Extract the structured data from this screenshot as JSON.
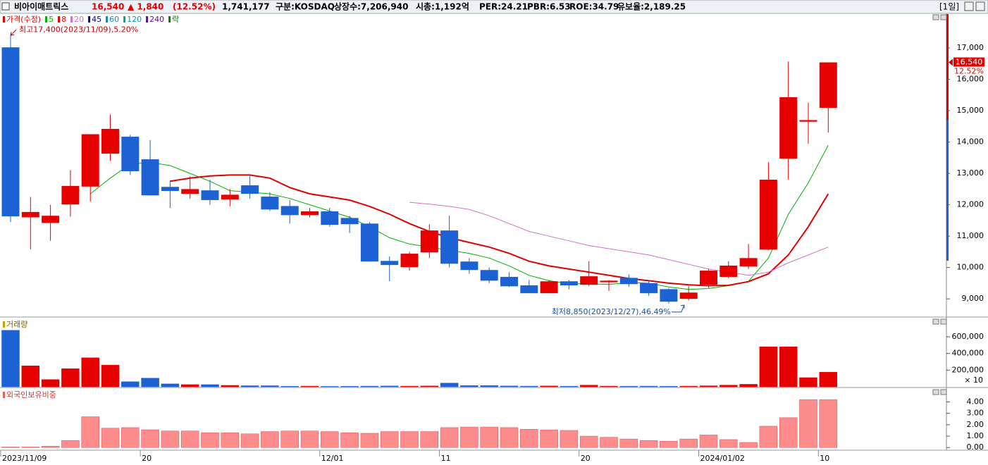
{
  "header": {
    "name": "비아이매트릭스",
    "price": "16,540",
    "change": "▲ 1,840",
    "change_pct": "(12.52%)",
    "volume": "1,741,177",
    "market": "구분:KOSDAQ",
    "listed": "상장수:7,206,940",
    "mcap": "시총:1,192억",
    "per": "PER:24.21",
    "pbr": "PBR:6.53",
    "roe": "ROE:34.79",
    "reserve": "유보율:2,189.25",
    "period": "[1일]"
  },
  "chart_data": [
    {
      "type": "candlestick",
      "categories": [
        "2023/11/09",
        null,
        null,
        null,
        null,
        null,
        null,
        "20",
        null,
        null,
        null,
        null,
        null,
        null,
        null,
        null,
        "12/01",
        null,
        null,
        null,
        null,
        null,
        "11",
        null,
        null,
        null,
        null,
        null,
        null,
        "20",
        null,
        null,
        null,
        null,
        null,
        "2024/01/02",
        null,
        null,
        null,
        null,
        null,
        "10"
      ],
      "open": [
        17020,
        11600,
        11420,
        12010,
        12580,
        13630,
        14170,
        13450,
        12570,
        12350,
        12460,
        12170,
        12620,
        12260,
        11960,
        11670,
        11790,
        11580,
        11400,
        10210,
        10010,
        10480,
        11180,
        10190,
        9920,
        9700,
        9430,
        9180,
        9560,
        9450,
        9530,
        9670,
        9500,
        9310,
        9000,
        9450,
        9700,
        10030,
        10570,
        13470,
        14650,
        15090
      ],
      "high": [
        17400,
        12250,
        12000,
        13100,
        14250,
        14880,
        14230,
        14060,
        12780,
        12900,
        12800,
        12500,
        12950,
        12400,
        12150,
        11900,
        11900,
        11650,
        11450,
        10350,
        10500,
        11380,
        11650,
        10300,
        10000,
        9850,
        9600,
        9600,
        9600,
        10200,
        9600,
        9780,
        9600,
        9350,
        9400,
        9950,
        10200,
        10750,
        13360,
        16570,
        15250,
        16540
      ],
      "low": [
        11450,
        10580,
        10850,
        11620,
        12100,
        13400,
        12950,
        12300,
        11900,
        12200,
        12000,
        11950,
        12200,
        11800,
        11400,
        11600,
        11300,
        11100,
        10190,
        9560,
        9900,
        10300,
        10000,
        9800,
        9500,
        9380,
        9180,
        9180,
        9300,
        9400,
        9250,
        9380,
        9100,
        8850,
        8950,
        9350,
        9650,
        9950,
        10550,
        12800,
        13950,
        14300
      ],
      "close": [
        11630,
        11770,
        11650,
        12600,
        14250,
        14420,
        13070,
        12300,
        12440,
        12500,
        12150,
        12320,
        12350,
        11850,
        11670,
        11790,
        11360,
        11380,
        10190,
        10080,
        10440,
        11180,
        10120,
        9920,
        9580,
        9400,
        9180,
        9560,
        9430,
        9720,
        9580,
        9470,
        9180,
        8910,
        9200,
        9900,
        10060,
        10300,
        12800,
        15430,
        14700,
        16540
      ],
      "up_color": "#e60000",
      "down_color": "#1c62d4",
      "series": [
        {
          "name": "가격(수정)",
          "color": "#e60000"
        },
        {
          "name": "5",
          "color": "#00b000",
          "values": [
            null,
            null,
            null,
            null,
            12350,
            12850,
            13300,
            13350,
            13250,
            13000,
            12750,
            12450,
            12400,
            12350,
            12200,
            12000,
            11800,
            11600,
            11300,
            10950,
            10750,
            10650,
            10550,
            10450,
            10300,
            10050,
            9750,
            9580,
            9480,
            9480,
            9460,
            9520,
            9500,
            9380,
            9300,
            9330,
            9420,
            9560,
            10300,
            11700,
            12700,
            13900
          ]
        },
        {
          "name": "8",
          "color": "#e00000",
          "values": [
            null,
            null,
            null,
            null,
            null,
            null,
            null,
            null,
            12750,
            12850,
            12920,
            12950,
            12950,
            12850,
            12550,
            12350,
            12250,
            12150,
            11950,
            11700,
            11400,
            11150,
            10950,
            10800,
            10650,
            10450,
            10200,
            10050,
            9950,
            9850,
            9750,
            9650,
            9580,
            9500,
            9450,
            9420,
            9430,
            9550,
            9800,
            10400,
            11300,
            12350
          ]
        },
        {
          "name": "20",
          "color": "#d070c8",
          "values": [
            null,
            null,
            null,
            null,
            null,
            null,
            null,
            null,
            null,
            null,
            null,
            null,
            null,
            null,
            null,
            null,
            null,
            null,
            null,
            null,
            12080,
            12020,
            11950,
            11850,
            11650,
            11400,
            11150,
            11000,
            10850,
            10700,
            10600,
            10500,
            10400,
            10250,
            10100,
            9950,
            9850,
            9750,
            9850,
            10150,
            10400,
            10650
          ]
        },
        {
          "name": "45",
          "color": "#000090"
        },
        {
          "name": "60",
          "color": "#2080c0"
        },
        {
          "name": "120",
          "color": "#00a0a0"
        },
        {
          "name": "240",
          "color": "#7000b0"
        },
        {
          "name": "락",
          "color": "#008000"
        }
      ],
      "ylim": [
        8420,
        18080
      ],
      "yticks": [
        {
          "value": 9000,
          "label": "9,000"
        },
        {
          "value": 10000,
          "label": "10,000"
        },
        {
          "value": 11000,
          "label": "11,000"
        },
        {
          "value": 12000,
          "label": "12,000"
        },
        {
          "value": 13000,
          "label": "13,000"
        },
        {
          "value": 14000,
          "label": "14,000"
        },
        {
          "value": 15000,
          "label": "15,000"
        },
        {
          "value": 16000,
          "label": "16,000"
        },
        {
          "value": 17000,
          "label": "17,000"
        }
      ],
      "high_note": "최고17,400(2023/11/09),5.20%",
      "low_note": "최저8,850(2023/12/27),46.49%",
      "last_label": "16,540",
      "change_label": "12.52%"
    },
    {
      "type": "bar",
      "title": "거래량",
      "values": [
        678000,
        252000,
        87000,
        217000,
        348000,
        261000,
        61000,
        104000,
        35000,
        26000,
        26000,
        17000,
        13000,
        13000,
        6000,
        8000,
        5000,
        6000,
        8000,
        10000,
        8000,
        10000,
        45000,
        15000,
        15000,
        10000,
        8000,
        10000,
        7000,
        20000,
        8000,
        7000,
        8000,
        6000,
        8000,
        12000,
        20000,
        30000,
        480000,
        480000,
        110000,
        175000
      ],
      "ylim": [
        0,
        820000
      ],
      "yticks": [
        {
          "value": 200000,
          "label": "200,000"
        },
        {
          "value": 400000,
          "label": "400,000"
        },
        {
          "value": 600000,
          "label": "600,000"
        }
      ],
      "unit": "× 10"
    },
    {
      "type": "bar",
      "title": "외국인보유비중",
      "color": "#ff8c8c",
      "values": [
        0.05,
        0.05,
        0.12,
        0.62,
        2.7,
        1.7,
        1.75,
        1.56,
        1.45,
        1.45,
        1.3,
        1.3,
        1.2,
        1.4,
        1.45,
        1.45,
        1.4,
        1.3,
        1.25,
        1.4,
        1.4,
        1.4,
        1.75,
        1.8,
        1.8,
        1.75,
        1.6,
        1.55,
        1.5,
        1.0,
        0.9,
        0.75,
        0.62,
        0.56,
        0.75,
        1.1,
        0.7,
        0.45,
        1.87,
        2.62,
        4.2,
        4.2
      ],
      "ylim": [
        -0.17,
        5.2
      ],
      "yticks": [
        {
          "value": 0,
          "label": "0.00"
        },
        {
          "value": 1,
          "label": "1.00"
        },
        {
          "value": 2,
          "label": "2.00"
        },
        {
          "value": 3,
          "label": "3.00"
        },
        {
          "value": 4,
          "label": "4.00"
        }
      ]
    }
  ]
}
